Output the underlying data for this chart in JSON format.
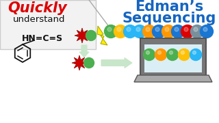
{
  "bg_color": "#ffffff",
  "quickly_text": "Quickly",
  "understand_text": "understand",
  "edman_line1": "Edman’s",
  "edman_line2": "Sequencing",
  "quickly_color": "#dd0000",
  "edman_color": "#1565c0",
  "formula": "HN=C=S",
  "chain_colors": [
    "#4caf50",
    "#ffc107",
    "#29b6f6",
    "#29b6f6",
    "#ff9800",
    "#1976d2",
    "#ff9800",
    "#1976d2",
    "#dd0000",
    "#78909c",
    "#1976d2"
  ],
  "screen_balls": [
    "#4caf50",
    "#ff9800",
    "#4caf50",
    "#ffc107",
    "#29b6f6"
  ],
  "star_color": "#cc0000",
  "arrow_fill": "#c8e6c9",
  "arrow_edge": "#81c784",
  "lightning_fill": "#ffee00",
  "lightning_edge": "#aaaa00",
  "panel_bg": "#f2f2f2",
  "panel_edge": "#cccccc",
  "screen_frame": "#777777",
  "screen_bg": "#daeef5",
  "laptop_base": "#aaaaaa",
  "diag_line_color": "#aaaaaa"
}
